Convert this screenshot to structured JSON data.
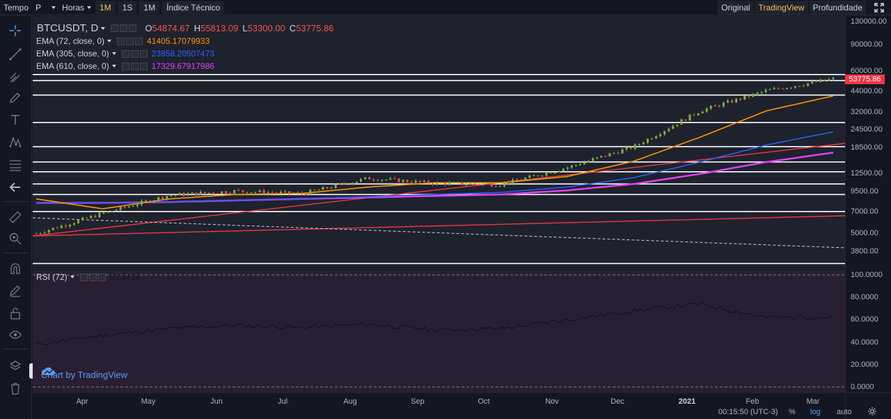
{
  "toolbar": {
    "tempo_label": "Tempo",
    "period_value": "P",
    "interval_label": "Horas",
    "intervals": [
      "1M",
      "1S",
      "1M"
    ],
    "indicators_label": "Índice Técnico",
    "view_tabs": [
      "Original",
      "TradingView",
      "Profundidade"
    ],
    "active_view": "TradingView"
  },
  "legend": {
    "symbol": "BTCUSDT, D",
    "open_key": "O",
    "open": "54874.67",
    "high_key": "H",
    "high": "55813.09",
    "low_key": "L",
    "low": "53300.00",
    "close_key": "C",
    "close": "53775.86",
    "indicators": [
      {
        "label": "EMA (72, close, 0)",
        "value": "41405.17079933",
        "color": "#ff9800"
      },
      {
        "label": "EMA (305, close, 0)",
        "value": "23858.20507473",
        "color": "#2962ff"
      },
      {
        "label": "EMA (610, close, 0)",
        "value": "17329.67917986",
        "color": "#e040fb"
      }
    ],
    "rsi_label": "RSI (72)",
    "rsi_value": "62.5418"
  },
  "price_tag": "53775.86",
  "branding": "Chart by TradingView",
  "chart_data": {
    "type": "line",
    "symbol": "BTCUSDT",
    "timeframe": "D",
    "scale": "log",
    "x": [
      "Mar",
      "Apr",
      "May",
      "Jun",
      "Jul",
      "Aug",
      "Sep",
      "Oct",
      "Nov",
      "Dec",
      "2021",
      "Feb",
      "Mar"
    ],
    "x_tick_labels": [
      "Apr",
      "May",
      "Jun",
      "Jul",
      "Aug",
      "Sep",
      "Oct",
      "Nov",
      "Dec",
      "2021",
      "Feb",
      "Mar"
    ],
    "y_tick_labels": [
      "130000.00",
      "90000.00",
      "60000.00",
      "44000.00",
      "32000.00",
      "24500.00",
      "18500.00",
      "12500.00",
      "9500.00",
      "7000.00",
      "5000.00",
      "3800.00"
    ],
    "rsi_tick_labels": [
      "100.0000",
      "80.0000",
      "60.0000",
      "40.0000",
      "20.0000",
      "0.0000"
    ],
    "series": [
      {
        "name": "BTCUSDT",
        "values": [
          5000,
          6800,
          9000,
          9600,
          9200,
          11700,
          10800,
          10600,
          13800,
          19000,
          33000,
          45000,
          53775
        ]
      },
      {
        "name": "EMA (72, close, 0)",
        "values": [
          8500,
          7300,
          8500,
          9100,
          9250,
          10200,
          10900,
          10900,
          12000,
          15200,
          22000,
          33000,
          41405
        ]
      },
      {
        "name": "EMA (305, close, 0)",
        "values": [
          8000,
          8000,
          8100,
          8300,
          8500,
          8800,
          9100,
          9400,
          10200,
          11800,
          15000,
          19500,
          23858
        ]
      },
      {
        "name": "EMA (610, close, 0)",
        "values": [
          8000,
          8000,
          8100,
          8300,
          8500,
          8700,
          8900,
          9100,
          9700,
          10700,
          12500,
          15000,
          17329
        ]
      },
      {
        "name": "RSI (72)",
        "values": [
          38,
          46,
          52,
          55,
          53,
          56,
          51,
          52,
          60,
          68,
          74,
          62,
          62.5
        ]
      }
    ],
    "horizontal_levels": [
      57500,
      52500,
      42000,
      27500,
      19000,
      15000,
      12900,
      10700,
      9100,
      7000,
      3150
    ]
  },
  "bottom": {
    "time": "00:15:50 (UTC-3)",
    "percent": "%",
    "log": "log",
    "auto": "auto"
  }
}
